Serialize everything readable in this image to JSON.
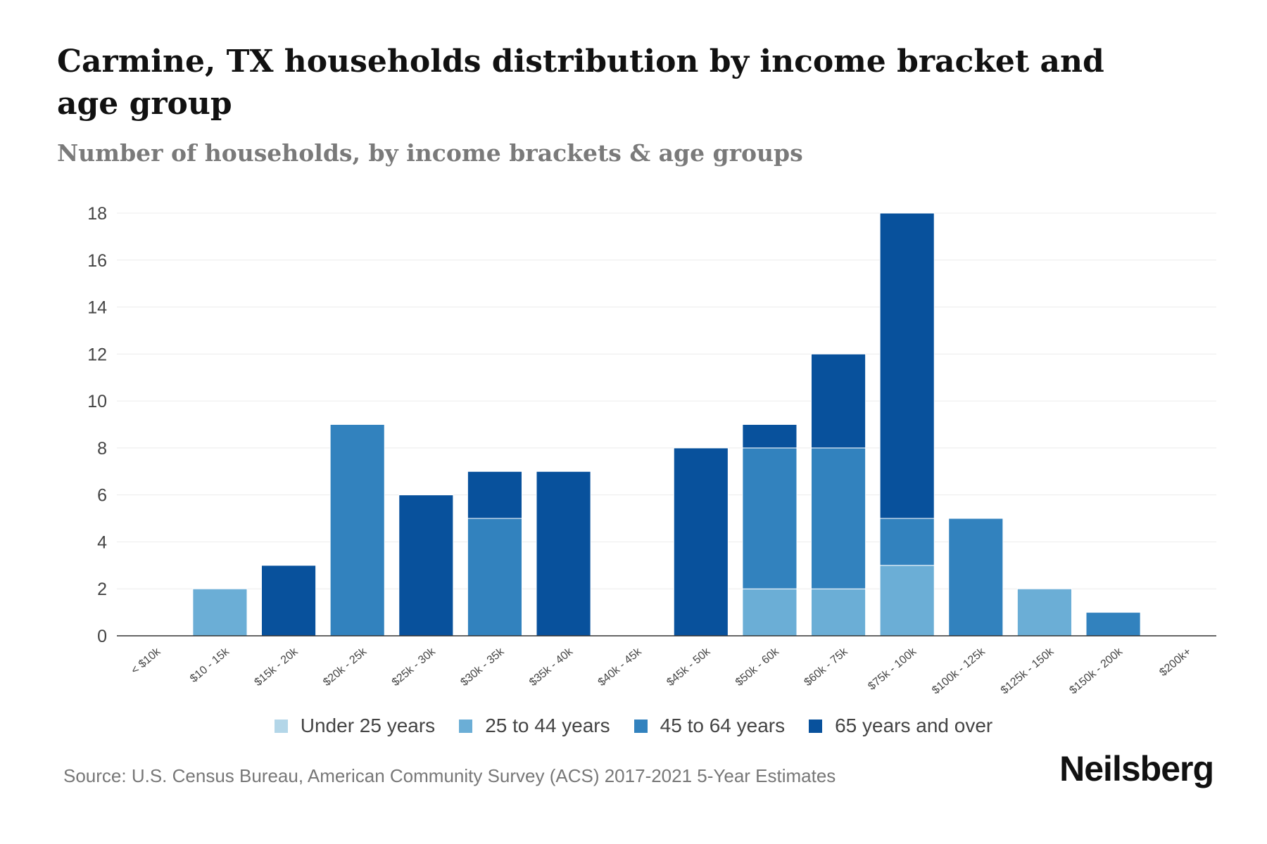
{
  "chart_data": {
    "type": "bar",
    "stacked": true,
    "title": "Carmine, TX households distribution by income bracket and age group",
    "subtitle": "Number of households, by income brackets & age groups",
    "xlabel": "",
    "ylabel": "",
    "ylim": [
      0,
      18
    ],
    "yticks": [
      0,
      2,
      4,
      6,
      8,
      10,
      12,
      14,
      16,
      18
    ],
    "grid": true,
    "legend_position": "bottom",
    "categories": [
      "< $10k",
      "$10 - 15k",
      "$15k - 20k",
      "$20k - 25k",
      "$25k - 30k",
      "$30k - 35k",
      "$35k - 40k",
      "$40k - 45k",
      "$45k - 50k",
      "$50k - 60k",
      "$60k - 75k",
      "$75k - 100k",
      "$100k - 125k",
      "$125k - 150k",
      "$150k - 200k",
      "$200k+"
    ],
    "series": [
      {
        "name": "Under 25 years",
        "color": "#b3d6e8",
        "values": [
          0,
          0,
          0,
          0,
          0,
          0,
          0,
          0,
          0,
          0,
          0,
          0,
          0,
          0,
          0,
          0
        ]
      },
      {
        "name": "25 to 44 years",
        "color": "#6baed6",
        "values": [
          0,
          2,
          0,
          0,
          0,
          0,
          0,
          0,
          0,
          2,
          2,
          3,
          0,
          2,
          0,
          0
        ]
      },
      {
        "name": "45 to 64 years",
        "color": "#3282be",
        "values": [
          0,
          0,
          0,
          9,
          0,
          5,
          0,
          0,
          0,
          6,
          6,
          2,
          5,
          0,
          1,
          0
        ]
      },
      {
        "name": "65 years and over",
        "color": "#08519c",
        "values": [
          0,
          0,
          3,
          0,
          6,
          2,
          7,
          0,
          8,
          1,
          4,
          13,
          0,
          0,
          0,
          0
        ]
      }
    ]
  },
  "source": "Source: U.S. Census Bureau, American Community Survey (ACS) 2017-2021 5-Year Estimates",
  "brand": "Neilsberg"
}
